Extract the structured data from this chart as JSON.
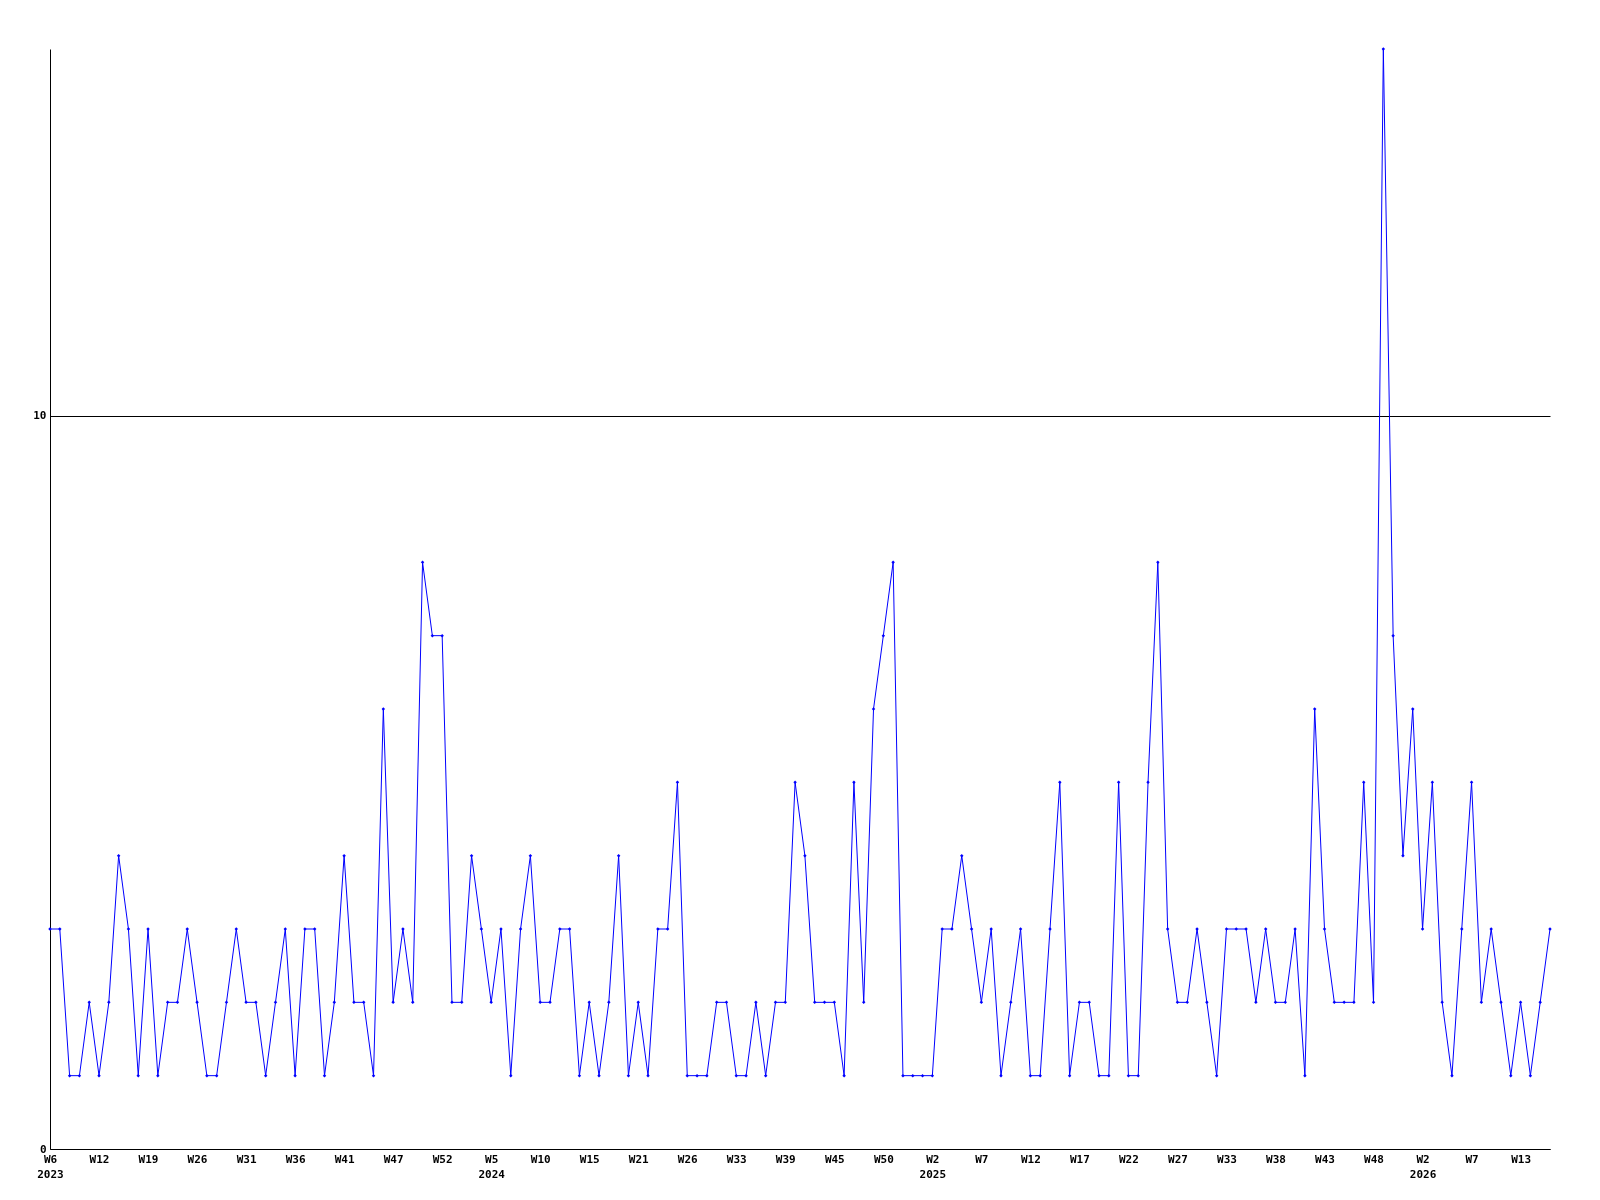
{
  "chart_data": {
    "type": "line",
    "categories": [
      "W6\n2023",
      null,
      null,
      null,
      null,
      "W12",
      null,
      null,
      null,
      null,
      "W19",
      null,
      null,
      null,
      null,
      "W26",
      null,
      null,
      null,
      null,
      "W31",
      null,
      null,
      null,
      null,
      "W36",
      null,
      null,
      null,
      null,
      "W41",
      null,
      null,
      null,
      null,
      "W47",
      null,
      null,
      null,
      null,
      "W52",
      null,
      null,
      null,
      null,
      "W5\n2024",
      null,
      null,
      null,
      null,
      "W10",
      null,
      null,
      null,
      null,
      "W15",
      null,
      null,
      null,
      null,
      "W21",
      null,
      null,
      null,
      null,
      "W26",
      null,
      null,
      null,
      null,
      "W33",
      null,
      null,
      null,
      null,
      "W39",
      null,
      null,
      null,
      null,
      "W45",
      null,
      null,
      null,
      null,
      "W50",
      null,
      null,
      null,
      null,
      "W2\n2025",
      null,
      null,
      null,
      null,
      "W7",
      null,
      null,
      null,
      null,
      "W12",
      null,
      null,
      null,
      null,
      "W17",
      null,
      null,
      null,
      null,
      "W22",
      null,
      null,
      null,
      null,
      "W27",
      null,
      null,
      null,
      null,
      "W33",
      null,
      null,
      null,
      null,
      "W38",
      null,
      null,
      null,
      null,
      "W43",
      null,
      null,
      null,
      null,
      "W48",
      null,
      null,
      null,
      null,
      "W2\n2026",
      null,
      null,
      null,
      null,
      "W7",
      null,
      null,
      null,
      null,
      "W13",
      null,
      null,
      null
    ],
    "series": [
      {
        "color": "#0000ff",
        "values": [
          3,
          3,
          1,
          1,
          2,
          1,
          2,
          4,
          3,
          1,
          3,
          1,
          2,
          2,
          3,
          2,
          1,
          1,
          2,
          3,
          2,
          2,
          1,
          2,
          3,
          1,
          3,
          3,
          1,
          2,
          4,
          2,
          2,
          1,
          6,
          2,
          3,
          2,
          8,
          7,
          7,
          2,
          2,
          4,
          3,
          2,
          3,
          1,
          3,
          4,
          2,
          2,
          3,
          3,
          1,
          2,
          1,
          2,
          4,
          1,
          2,
          1,
          3,
          3,
          5,
          1,
          1,
          1,
          2,
          2,
          1,
          1,
          2,
          1,
          2,
          2,
          5,
          4,
          2,
          2,
          2,
          1,
          5,
          2,
          6,
          7,
          8,
          1,
          1,
          1,
          1,
          3,
          3,
          4,
          3,
          2,
          3,
          1,
          2,
          3,
          1,
          1,
          3,
          5,
          1,
          2,
          2,
          1,
          1,
          5,
          1,
          1,
          5,
          8,
          3,
          2,
          2,
          3,
          2,
          1,
          3,
          3,
          3,
          2,
          3,
          2,
          2,
          3,
          1,
          6,
          3,
          2,
          2,
          2,
          5,
          2,
          15,
          7,
          4,
          6,
          3,
          5,
          2,
          1,
          3,
          5,
          2,
          3,
          2,
          1,
          2,
          1,
          2,
          3
        ]
      }
    ],
    "ylim": [
      0,
      15
    ],
    "yticks": [
      0,
      10
    ],
    "grid": "y",
    "marker": "diamond",
    "line_style": "solid"
  }
}
